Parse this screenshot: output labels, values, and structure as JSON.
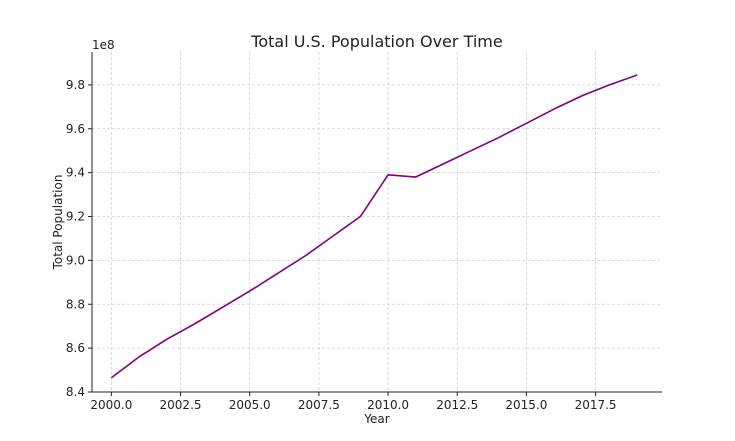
{
  "chart_data": {
    "type": "line",
    "title": "Total U.S. Population Over Time",
    "xlabel": "Year",
    "ylabel": "Total Population",
    "y_offset_text": "1e8",
    "xlim": [
      1999.3,
      2019.9
    ],
    "ylim": [
      8.4,
      9.95
    ],
    "grid": true,
    "line_color": "#800080",
    "x_ticks": [
      2000,
      2002.5,
      2005,
      2007.5,
      2010,
      2012.5,
      2015,
      2017.5
    ],
    "x_tick_labels": [
      "2000.0",
      "2002.5",
      "2005.0",
      "2007.5",
      "2010.0",
      "2012.5",
      "2015.0",
      "2017.5"
    ],
    "y_ticks": [
      8.4,
      8.6,
      8.8,
      9.0,
      9.2,
      9.4,
      9.6,
      9.8
    ],
    "y_tick_labels": [
      "8.4",
      "8.6",
      "8.8",
      "9.0",
      "9.2",
      "9.4",
      "9.6",
      "9.8"
    ],
    "series": [
      {
        "x": [
          2000,
          2001,
          2002,
          2003,
          2004,
          2005,
          2006,
          2007,
          2008,
          2009,
          2010,
          2011,
          2012,
          2013,
          2014,
          2015,
          2016,
          2017,
          2018,
          2019
        ],
        "values": [
          8.465,
          8.56,
          8.64,
          8.71,
          8.785,
          8.86,
          8.94,
          9.02,
          9.11,
          9.2,
          9.39,
          9.38,
          9.44,
          9.5,
          9.56,
          9.625,
          9.69,
          9.75,
          9.8,
          9.845
        ]
      }
    ]
  }
}
